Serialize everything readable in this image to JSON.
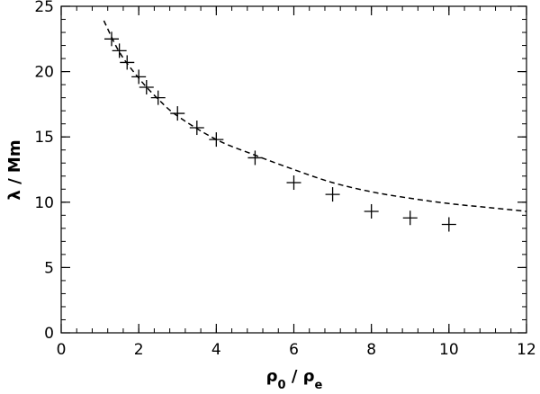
{
  "chart_data": {
    "type": "scatter",
    "title": "",
    "xlabel": {
      "symbol": "ρ",
      "sub1": "0",
      "sep": " / ",
      "sub2": "e"
    },
    "ylabel": {
      "symbol": "λ",
      "rest": " / Mm"
    },
    "xlim": [
      0,
      12
    ],
    "ylim": [
      0,
      25
    ],
    "xticks": [
      0,
      2,
      4,
      6,
      8,
      10,
      12
    ],
    "xtick_labels": [
      "0",
      "2",
      "4",
      "6",
      "8",
      "10",
      "12"
    ],
    "yticks": [
      0,
      5,
      10,
      15,
      20,
      25
    ],
    "ytick_labels": [
      "0",
      "5",
      "10",
      "15",
      "20",
      "25"
    ],
    "x_minor_step": 0.4,
    "y_minor_step": 1,
    "grid": false,
    "legend": "none",
    "series": [
      {
        "marker": "plus",
        "points": [
          {
            "x": 1.3,
            "y": 22.5
          },
          {
            "x": 1.5,
            "y": 21.6
          },
          {
            "x": 1.7,
            "y": 20.7
          },
          {
            "x": 2.0,
            "y": 19.6
          },
          {
            "x": 2.2,
            "y": 18.8
          },
          {
            "x": 2.5,
            "y": 18.0
          },
          {
            "x": 3.0,
            "y": 16.8
          },
          {
            "x": 3.5,
            "y": 15.7
          },
          {
            "x": 4.0,
            "y": 14.8
          },
          {
            "x": 5.0,
            "y": 13.4
          },
          {
            "x": 6.0,
            "y": 11.5
          },
          {
            "x": 7.0,
            "y": 10.6
          },
          {
            "x": 8.0,
            "y": 9.3
          },
          {
            "x": 9.0,
            "y": 8.8
          },
          {
            "x": 10.0,
            "y": 8.3
          }
        ]
      },
      {
        "style": "dashed",
        "curve": [
          {
            "x": 1.1,
            "y": 23.9
          },
          {
            "x": 1.5,
            "y": 21.5
          },
          {
            "x": 2.0,
            "y": 19.5
          },
          {
            "x": 2.5,
            "y": 17.9
          },
          {
            "x": 3.0,
            "y": 16.6
          },
          {
            "x": 4.0,
            "y": 14.8
          },
          {
            "x": 5.0,
            "y": 13.6
          },
          {
            "x": 6.0,
            "y": 12.5
          },
          {
            "x": 7.0,
            "y": 11.5
          },
          {
            "x": 8.0,
            "y": 10.8
          },
          {
            "x": 9.0,
            "y": 10.3
          },
          {
            "x": 10.0,
            "y": 9.9
          },
          {
            "x": 11.0,
            "y": 9.6
          },
          {
            "x": 12.0,
            "y": 9.3
          }
        ]
      }
    ]
  }
}
